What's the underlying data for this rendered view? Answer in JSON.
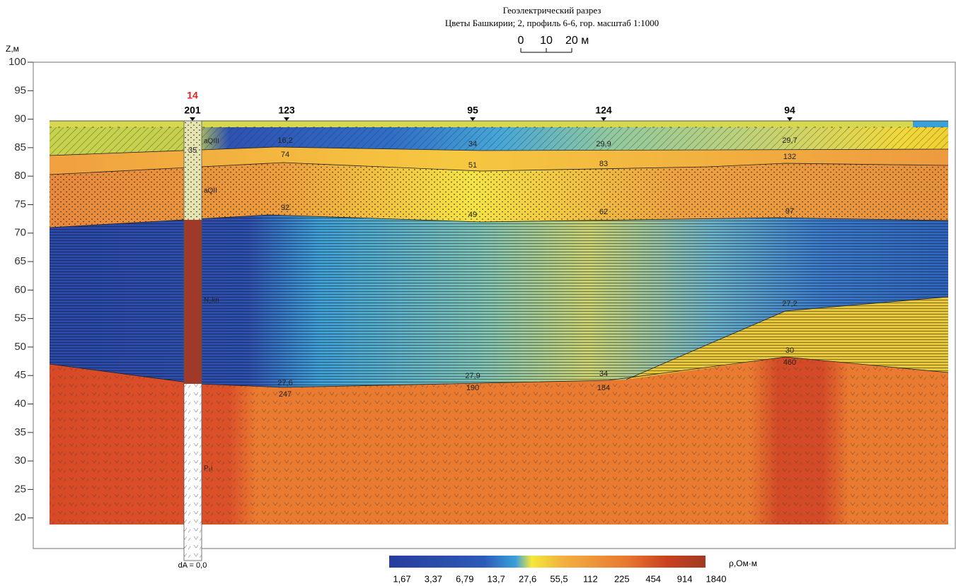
{
  "header": {
    "title": "Геоэлектрический разрез",
    "subtitle": "Цветы Башкирии; 2, профиль 6-6, гор. масштаб 1:1000",
    "scale_labels": [
      "0",
      "10",
      "20 м"
    ]
  },
  "axis": {
    "label": "Z,м",
    "ylim": [
      15,
      100
    ],
    "yticks": [
      20,
      25,
      30,
      35,
      40,
      45,
      50,
      55,
      60,
      65,
      70,
      75,
      80,
      85,
      90,
      95,
      100
    ]
  },
  "stations": [
    {
      "label": "201",
      "note": "14"
    },
    {
      "label": "123"
    },
    {
      "label": "95"
    },
    {
      "label": "124"
    },
    {
      "label": "94"
    }
  ],
  "layer_labels": [
    "35",
    "16,2",
    "34",
    "29,9",
    "29,7",
    "74",
    "51",
    "83",
    "132",
    "92",
    "49",
    "62",
    "97",
    "27,6",
    "27,9",
    "34",
    "27,2",
    "30",
    "247",
    "190",
    "184",
    "460"
  ],
  "geology": [
    "aQIII",
    "aQII",
    "N₂kn",
    "P₁i"
  ],
  "well": {
    "label": "dA = 0,0"
  },
  "legend": {
    "labels": [
      "1,67",
      "3,37",
      "6,79",
      "13,7",
      "27,6",
      "55,5",
      "112",
      "225",
      "454",
      "914",
      "1840"
    ],
    "unit": "ρ,Ом·м"
  }
}
